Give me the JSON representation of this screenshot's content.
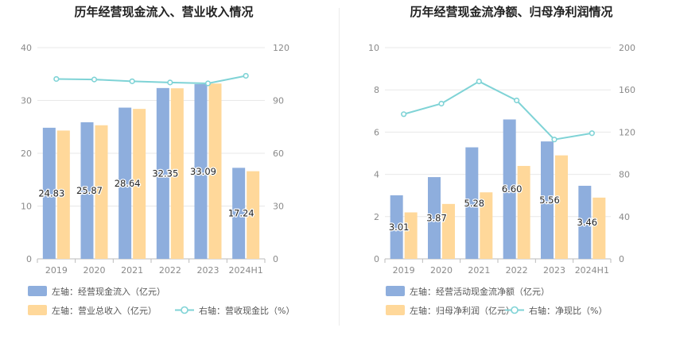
{
  "colors": {
    "cash_flow": "#8eaedd",
    "revenue": "#ffd89a",
    "ratio_line": "#7fd3d6",
    "grid": "#e8e8e8",
    "axis_text": "#8a8a8a",
    "title": "#222222",
    "label": "#222222"
  },
  "chart_data": [
    {
      "type": "bar",
      "title": "历年经营现金流入、营业收入情况",
      "categories": [
        "2019",
        "2020",
        "2021",
        "2022",
        "2023",
        "2024H1"
      ],
      "y_left": {
        "range": [
          0,
          40
        ],
        "ticks": [
          "0",
          "10",
          "20",
          "30",
          "40"
        ]
      },
      "y_right": {
        "range": [
          0,
          120
        ],
        "ticks": [
          "0",
          "30",
          "60",
          "90",
          "120"
        ]
      },
      "series": [
        {
          "name": "左轴：经营现金流入（亿元）",
          "type": "bar",
          "axis": "left",
          "color": "#8eaedd",
          "values": [
            24.83,
            25.87,
            28.64,
            32.35,
            33.09,
            17.24
          ],
          "labels": [
            "24.83",
            "25.87",
            "28.64",
            "32.35",
            "33.09",
            "17.24"
          ]
        },
        {
          "name": "左轴：营业总收入（亿元）",
          "type": "bar",
          "axis": "left",
          "color": "#ffd89a",
          "values": [
            24.3,
            25.3,
            28.4,
            32.3,
            33.2,
            16.6
          ]
        },
        {
          "name": "右轴：营收现金比（%）",
          "type": "line",
          "axis": "right",
          "color": "#7fd3d6",
          "values": [
            102.2,
            101.9,
            100.9,
            100.2,
            99.7,
            104.0
          ]
        }
      ],
      "legend": {
        "placement": "bottom-left",
        "rows": [
          [
            "左轴：经营现金流入（亿元）"
          ],
          [
            "左轴：营业总收入（亿元）",
            "右轴：营收现金比（%）"
          ]
        ]
      },
      "grid": true
    },
    {
      "type": "bar",
      "title": "历年经营现金流净额、归母净利润情况",
      "categories": [
        "2019",
        "2020",
        "2021",
        "2022",
        "2023",
        "2024H1"
      ],
      "y_left": {
        "range": [
          0,
          10
        ],
        "ticks": [
          "0",
          "2",
          "4",
          "6",
          "8",
          "10"
        ]
      },
      "y_right": {
        "range": [
          0,
          200
        ],
        "ticks": [
          "0",
          "40",
          "80",
          "120",
          "160",
          "200"
        ]
      },
      "series": [
        {
          "name": "左轴：经营活动现金流净额（亿元）",
          "type": "bar",
          "axis": "left",
          "color": "#8eaedd",
          "values": [
            3.01,
            3.87,
            5.28,
            6.6,
            5.56,
            3.46
          ],
          "labels": [
            "3.01",
            "3.87",
            "5.28",
            "6.60",
            "5.56",
            "3.46"
          ]
        },
        {
          "name": "左轴：归母净利润（亿元）",
          "type": "bar",
          "axis": "left",
          "color": "#ffd89a",
          "values": [
            2.2,
            2.6,
            3.15,
            4.4,
            4.9,
            2.9
          ]
        },
        {
          "name": "右轴：净现比（%）",
          "type": "line",
          "axis": "right",
          "color": "#7fd3d6",
          "values": [
            137,
            147,
            168,
            150,
            113,
            119
          ]
        }
      ],
      "legend": {
        "placement": "bottom-left",
        "rows": [
          [
            "左轴：经营活动现金流净额（亿元）"
          ],
          [
            "左轴：归母净利润（亿元）",
            "右轴：净现比（%）"
          ]
        ]
      },
      "grid": true
    }
  ]
}
